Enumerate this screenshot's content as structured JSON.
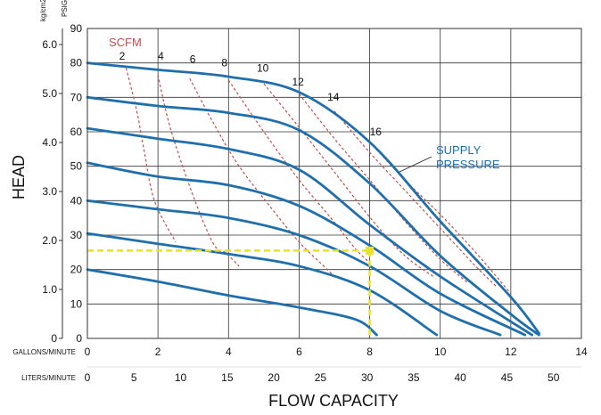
{
  "chart_data": {
    "type": "line",
    "title": "",
    "xlabel": "FLOW CAPACITY",
    "ylabel": "HEAD",
    "x_unit_label": "GALLONS/MINUTE",
    "x2_unit_label": "LITERS/MINUTE",
    "y_unit_label": "PSIG",
    "y2_unit_label": "kg/cm2",
    "xlim": [
      0,
      14
    ],
    "ylim": [
      0,
      90
    ],
    "grid": true,
    "x_ticks": [
      "0",
      "2",
      "4",
      "6",
      "8",
      "10",
      "12",
      "14"
    ],
    "x2_ticks": [
      "0",
      "5",
      "10",
      "15",
      "20",
      "25",
      "30",
      "35",
      "40",
      "45",
      "50"
    ],
    "y_ticks": [
      "0",
      "10",
      "20",
      "30",
      "40",
      "50",
      "60",
      "70",
      "80",
      "90"
    ],
    "y2_ticks": [
      "0",
      "1.0",
      "2.0",
      "3.0",
      "4.0",
      "5.0",
      "6.0"
    ],
    "colors": {
      "supply": "#1f6fad",
      "scfm": "#c0504d",
      "highlight": "#e8e32a",
      "grid": "#333333"
    },
    "supply_pressure_label": [
      "SUPPLY",
      "PRESSURE"
    ],
    "scfm_label": "SCFM",
    "supply_series": [
      {
        "values": [
          [
            0,
            80
          ],
          [
            2,
            78
          ],
          [
            4,
            76
          ],
          [
            6,
            71.5
          ],
          [
            8,
            57
          ],
          [
            10,
            34
          ],
          [
            12,
            12
          ],
          [
            12.8,
            1.5
          ]
        ]
      },
      {
        "values": [
          [
            0,
            70
          ],
          [
            2,
            67.5
          ],
          [
            4,
            65.5
          ],
          [
            6,
            60.5
          ],
          [
            8,
            45
          ],
          [
            10,
            24
          ],
          [
            12,
            7
          ],
          [
            12.8,
            1
          ]
        ]
      },
      {
        "values": [
          [
            0,
            61
          ],
          [
            2,
            58
          ],
          [
            4,
            55
          ],
          [
            6,
            49
          ],
          [
            8,
            33
          ],
          [
            10,
            18
          ],
          [
            12.6,
            1
          ]
        ]
      },
      {
        "values": [
          [
            0,
            51
          ],
          [
            2,
            47
          ],
          [
            4,
            44.5
          ],
          [
            6,
            38.5
          ],
          [
            8,
            27
          ],
          [
            10,
            13
          ],
          [
            12.4,
            1
          ]
        ]
      },
      {
        "values": [
          [
            0,
            40
          ],
          [
            2,
            37.5
          ],
          [
            4,
            35
          ],
          [
            6,
            30
          ],
          [
            8,
            21
          ],
          [
            10,
            8
          ],
          [
            11.7,
            1
          ]
        ]
      },
      {
        "values": [
          [
            0,
            30.5
          ],
          [
            2,
            27.5
          ],
          [
            4,
            24.5
          ],
          [
            6,
            21
          ],
          [
            8,
            14
          ],
          [
            9.9,
            1
          ]
        ]
      },
      {
        "values": [
          [
            0,
            20
          ],
          [
            2,
            16.5
          ],
          [
            4,
            12.5
          ],
          [
            6,
            9
          ],
          [
            7.6,
            5.5
          ],
          [
            8.2,
            1
          ]
        ]
      }
    ],
    "scfm_series": [
      {
        "name": "2",
        "label_at": [
          0.9,
          81
        ],
        "values": [
          [
            1.1,
            78.5
          ],
          [
            1.4,
            66
          ],
          [
            1.6,
            55
          ],
          [
            1.9,
            40
          ],
          [
            2.5,
            28
          ]
        ]
      },
      {
        "name": "4",
        "label_at": [
          2.0,
          81
        ],
        "values": [
          [
            2.0,
            76.5
          ],
          [
            2.3,
            63
          ],
          [
            2.7,
            50
          ],
          [
            3.2,
            36
          ],
          [
            3.6,
            27
          ],
          [
            3.9,
            25
          ],
          [
            4.3,
            21
          ]
        ]
      },
      {
        "name": "6",
        "label_at": [
          2.9,
          80
        ],
        "values": [
          [
            2.9,
            75.5
          ],
          [
            3.6,
            62
          ],
          [
            4.3,
            50
          ],
          [
            5.2,
            38
          ],
          [
            6.0,
            28
          ],
          [
            6.7,
            21
          ],
          [
            7.0,
            18
          ]
        ]
      },
      {
        "name": "8",
        "label_at": [
          3.8,
          79
        ],
        "values": [
          [
            4.0,
            75
          ],
          [
            5.0,
            60
          ],
          [
            6.0,
            46
          ],
          [
            6.9,
            35
          ],
          [
            7.6,
            26
          ],
          [
            8.0,
            22
          ]
        ]
      },
      {
        "name": "10",
        "label_at": [
          4.8,
          77.5
        ],
        "values": [
          [
            5.0,
            74
          ],
          [
            6.1,
            60
          ],
          [
            7.1,
            47
          ],
          [
            8.1,
            34
          ],
          [
            9.0,
            24
          ],
          [
            9.8,
            18
          ]
        ]
      },
      {
        "name": "12",
        "label_at": [
          5.8,
          73.5
        ],
        "values": [
          [
            6.0,
            71
          ],
          [
            7.0,
            58
          ],
          [
            8.0,
            46
          ],
          [
            9.0,
            34
          ],
          [
            10.0,
            23
          ],
          [
            10.8,
            16
          ]
        ]
      },
      {
        "name": "14",
        "label_at": [
          6.8,
          69
        ],
        "values": [
          [
            7.0,
            66
          ],
          [
            8.0,
            54
          ],
          [
            9.0,
            43
          ],
          [
            10.0,
            32
          ],
          [
            11.0,
            21
          ],
          [
            11.6,
            15
          ]
        ]
      },
      {
        "name": "16",
        "label_at": [
          8.0,
          59
        ],
        "values": [
          [
            8.0,
            57
          ],
          [
            9.0,
            46
          ],
          [
            10.0,
            36
          ],
          [
            11.0,
            25
          ],
          [
            12.0,
            13
          ]
        ]
      }
    ],
    "highlight_point": {
      "x": 8,
      "y": 25.5
    }
  }
}
